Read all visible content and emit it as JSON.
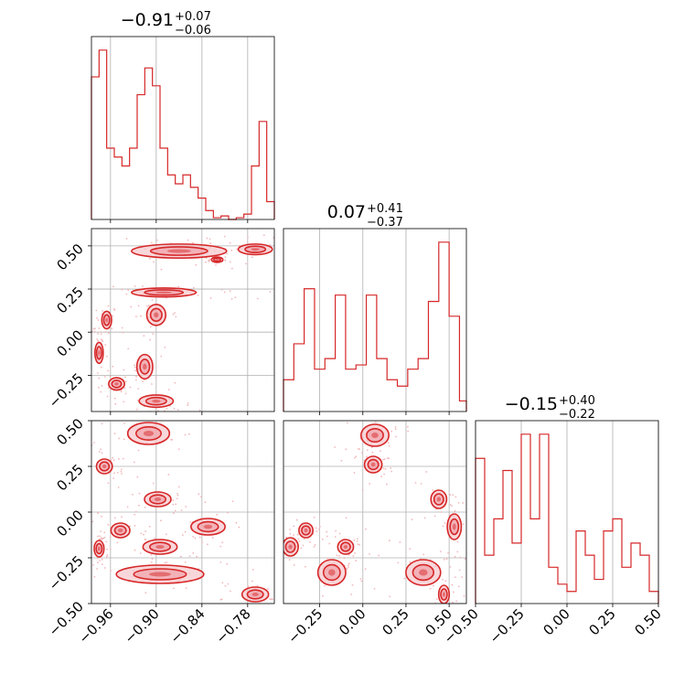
{
  "chart_data": {
    "type": "corner",
    "accent_color": "#d62728",
    "grid": true,
    "parameters": [
      {
        "title_value": "−0.91",
        "title_upper": "+0.07",
        "title_lower": "−0.06",
        "range": [
          -0.985,
          -0.745
        ],
        "ticks": [
          -0.96,
          -0.9,
          -0.84,
          -0.78
        ],
        "tick_labels": [
          "−0.96",
          "−0.90",
          "−0.84",
          "−0.78"
        ],
        "histogram": {
          "bin_edges": [
            -0.985,
            -0.975,
            -0.965,
            -0.955,
            -0.945,
            -0.935,
            -0.925,
            -0.915,
            -0.905,
            -0.895,
            -0.885,
            -0.875,
            -0.865,
            -0.855,
            -0.845,
            -0.835,
            -0.825,
            -0.815,
            -0.805,
            -0.795,
            -0.785,
            -0.775,
            -0.765,
            -0.755,
            -0.745
          ],
          "counts": [
            0.8,
            0.95,
            0.4,
            0.35,
            0.3,
            0.4,
            0.7,
            0.85,
            0.75,
            0.4,
            0.25,
            0.2,
            0.25,
            0.18,
            0.12,
            0.05,
            0.01,
            0.02,
            0.0,
            0.01,
            0.03,
            0.3,
            0.55,
            0.1
          ]
        }
      },
      {
        "title_value": "0.07",
        "title_upper": "+0.41",
        "title_lower": "−0.37",
        "range": [
          -0.46,
          0.6
        ],
        "ticks": [
          -0.25,
          0.0,
          0.25,
          0.5
        ],
        "tick_labels": [
          "−0.25",
          "0.00",
          "0.25",
          "0.50"
        ],
        "histogram": {
          "bin_edges": [
            -0.46,
            -0.4,
            -0.34,
            -0.28,
            -0.22,
            -0.16,
            -0.1,
            -0.04,
            0.02,
            0.08,
            0.14,
            0.2,
            0.26,
            0.32,
            0.38,
            0.44,
            0.5,
            0.56,
            0.6
          ],
          "counts": [
            0.15,
            0.32,
            0.58,
            0.2,
            0.25,
            0.55,
            0.2,
            0.22,
            0.55,
            0.25,
            0.15,
            0.12,
            0.2,
            0.25,
            0.52,
            0.8,
            0.45,
            0.05
          ]
        }
      },
      {
        "title_value": "−0.15",
        "title_upper": "+0.40",
        "title_lower": "−0.22",
        "range": [
          -0.5,
          0.5
        ],
        "ticks": [
          -0.5,
          -0.25,
          0.0,
          0.25,
          0.5
        ],
        "tick_labels": [
          "−0.50",
          "−0.25",
          "0.00",
          "0.25",
          "0.50"
        ],
        "histogram": {
          "bin_edges": [
            -0.5,
            -0.45,
            -0.4,
            -0.35,
            -0.3,
            -0.25,
            -0.2,
            -0.15,
            -0.1,
            -0.05,
            0.0,
            0.05,
            0.1,
            0.15,
            0.2,
            0.25,
            0.3,
            0.35,
            0.4,
            0.45,
            0.5
          ],
          "counts": [
            0.6,
            0.2,
            0.35,
            0.55,
            0.25,
            0.7,
            0.35,
            0.7,
            0.15,
            0.08,
            0.05,
            0.3,
            0.2,
            0.1,
            0.3,
            0.35,
            0.15,
            0.25,
            0.2,
            0.05
          ]
        }
      }
    ],
    "scatter_panels": [
      {
        "x_param": 0,
        "y_param": 1,
        "clusters": [
          {
            "x": -0.965,
            "y": 0.07,
            "sx": 0.004,
            "sy": 0.04,
            "angle": 0
          },
          {
            "x": -0.975,
            "y": -0.12,
            "sx": 0.003,
            "sy": 0.05,
            "angle": 0
          },
          {
            "x": -0.952,
            "y": -0.3,
            "sx": 0.008,
            "sy": 0.025,
            "angle": 0
          },
          {
            "x": -0.9,
            "y": -0.4,
            "sx": 0.02,
            "sy": 0.025,
            "angle": 0
          },
          {
            "x": -0.915,
            "y": -0.2,
            "sx": 0.008,
            "sy": 0.06,
            "angle": 0
          },
          {
            "x": -0.9,
            "y": 0.1,
            "sx": 0.01,
            "sy": 0.05,
            "angle": 0
          },
          {
            "x": -0.89,
            "y": 0.23,
            "sx": 0.04,
            "sy": 0.015,
            "angle": 0
          },
          {
            "x": -0.87,
            "y": 0.47,
            "sx": 0.06,
            "sy": 0.03,
            "angle": 0
          },
          {
            "x": -0.77,
            "y": 0.48,
            "sx": 0.02,
            "sy": 0.02,
            "angle": 0
          },
          {
            "x": -0.82,
            "y": 0.42,
            "sx": 0.005,
            "sy": 0.005,
            "angle": 0
          }
        ]
      },
      {
        "x_param": 0,
        "y_param": 2,
        "clusters": [
          {
            "x": -0.968,
            "y": 0.25,
            "sx": 0.008,
            "sy": 0.03,
            "angle": 0
          },
          {
            "x": -0.975,
            "y": -0.2,
            "sx": 0.004,
            "sy": 0.035,
            "angle": 0
          },
          {
            "x": -0.947,
            "y": -0.1,
            "sx": 0.01,
            "sy": 0.03,
            "angle": 0
          },
          {
            "x": -0.91,
            "y": 0.43,
            "sx": 0.025,
            "sy": 0.05,
            "angle": 0
          },
          {
            "x": -0.898,
            "y": 0.07,
            "sx": 0.015,
            "sy": 0.03,
            "angle": 0
          },
          {
            "x": -0.895,
            "y": -0.19,
            "sx": 0.02,
            "sy": 0.03,
            "angle": 0
          },
          {
            "x": -0.832,
            "y": -0.08,
            "sx": 0.02,
            "sy": 0.035,
            "angle": 0
          },
          {
            "x": -0.895,
            "y": -0.34,
            "sx": 0.055,
            "sy": 0.04,
            "angle": 0
          },
          {
            "x": -0.77,
            "y": -0.45,
            "sx": 0.015,
            "sy": 0.03,
            "angle": 0
          }
        ]
      },
      {
        "x_param": 1,
        "y_param": 2,
        "clusters": [
          {
            "x": 0.07,
            "y": 0.42,
            "sx": 0.07,
            "sy": 0.05,
            "angle": 0
          },
          {
            "x": 0.06,
            "y": 0.26,
            "sx": 0.04,
            "sy": 0.035,
            "angle": 0
          },
          {
            "x": 0.44,
            "y": 0.07,
            "sx": 0.035,
            "sy": 0.04,
            "angle": 0
          },
          {
            "x": 0.53,
            "y": -0.08,
            "sx": 0.03,
            "sy": 0.06,
            "angle": 0
          },
          {
            "x": -0.33,
            "y": -0.1,
            "sx": 0.03,
            "sy": 0.03,
            "angle": 0
          },
          {
            "x": -0.42,
            "y": -0.19,
            "sx": 0.035,
            "sy": 0.04,
            "angle": 0
          },
          {
            "x": -0.1,
            "y": -0.19,
            "sx": 0.035,
            "sy": 0.03,
            "angle": 0
          },
          {
            "x": -0.18,
            "y": -0.33,
            "sx": 0.07,
            "sy": 0.06,
            "angle": 0
          },
          {
            "x": 0.35,
            "y": -0.33,
            "sx": 0.09,
            "sy": 0.06,
            "angle": 0
          },
          {
            "x": 0.47,
            "y": -0.45,
            "sx": 0.02,
            "sy": 0.04,
            "angle": 0
          }
        ]
      }
    ]
  }
}
